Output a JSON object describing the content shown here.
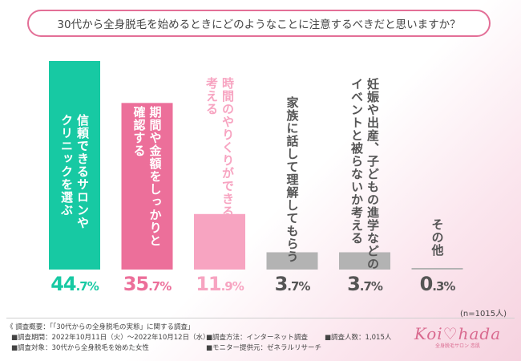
{
  "title": "30代から全身脱毛を始めるときにどのようなことに注意するべきだと思いますか？",
  "chart_data": {
    "type": "bar",
    "title": "30代から全身脱毛を始めるときにどのようなことに注意するべきだと思いますか？",
    "unit": "%",
    "ylim": [
      0,
      50
    ],
    "categories": [
      "信頼できるサロンや\nクリニックを選ぶ",
      "期間や金額をしっかりと\n確認する",
      "時間のやりくりができるかを\n考える",
      "家族に話して理解してもらう",
      "妊娠や出産、子どもの進学などの\nイベントと被らないか考える",
      "その他"
    ],
    "values": [
      44.7,
      35.7,
      11.9,
      3.7,
      3.7,
      0.3
    ],
    "value_labels": [
      {
        "int": "44",
        "dec": ".7%"
      },
      {
        "int": "35",
        "dec": ".7%"
      },
      {
        "int": "11",
        "dec": ".9%"
      },
      {
        "int": "3",
        "dec": ".7%"
      },
      {
        "int": "3",
        "dec": ".7%"
      },
      {
        "int": "0",
        "dec": ".3%"
      }
    ],
    "colors": [
      "#17c9a3",
      "#ec6f9a",
      "#f7a4c1",
      "#b3b3b3",
      "#b3b3b3",
      "#b3b3b3"
    ],
    "label_colors": [
      "#17c9a3",
      "#ec6f9a",
      "#f7a4c1",
      "#555555",
      "#555555",
      "#555555"
    ],
    "n_label": "(n=1015人)"
  },
  "footer": {
    "overview": "《 調査概要：「「30代からの全身脱毛の実態」に関する調査」",
    "period": "■調査期間：2022年10月11日（火）〜2022年10月12日（水）",
    "target": "■調査対象：30代から全身脱毛を始めた女性",
    "method": "■調査方法：インターネット調査",
    "provider": "■モニター提供元：ゼネラルリサーチ",
    "count": "■調査人数：1,015人"
  },
  "logo": {
    "text": "Koi♡hada",
    "sub": "全身脱毛サロン 恋肌"
  }
}
